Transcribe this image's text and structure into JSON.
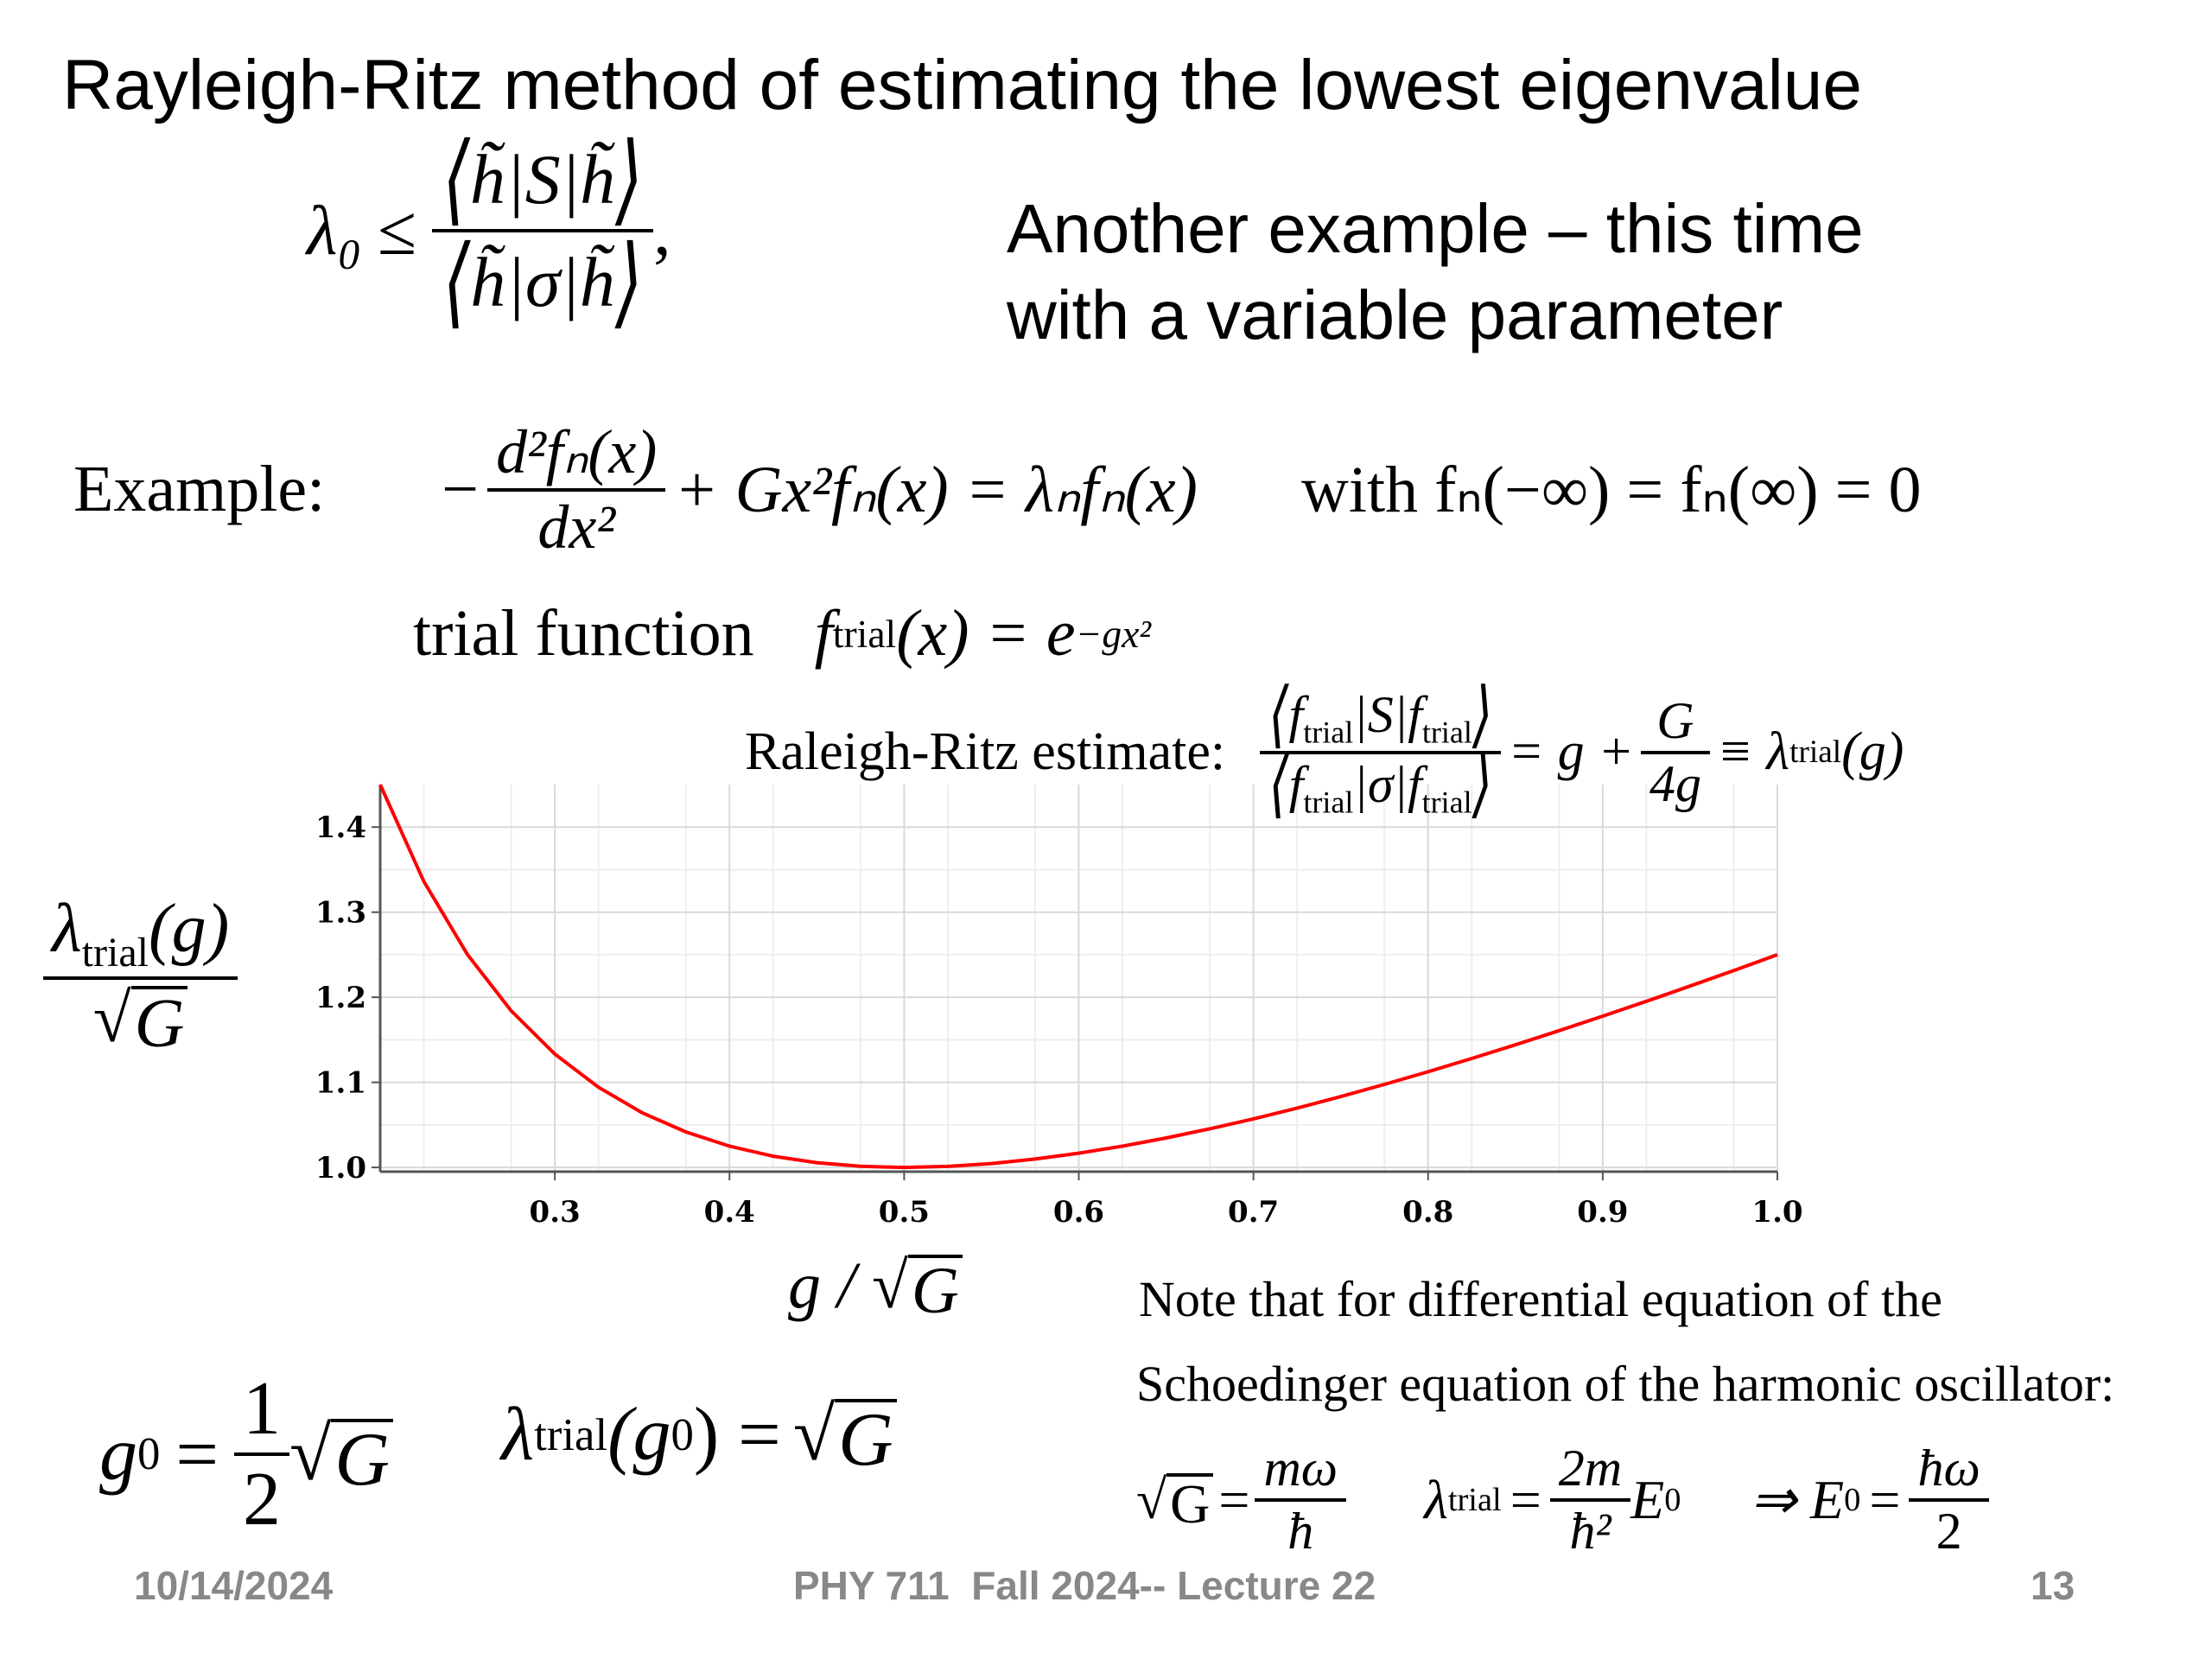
{
  "slide": {
    "title": "Rayleigh-Ritz method of estimating the lowest eigenvalue",
    "subtitle_line1": "Another example – this time",
    "subtitle_line2": "with a variable parameter"
  },
  "math": {
    "lambda0": "λ₀",
    "leq": "≤",
    "h_tilde": "h̃",
    "S": "S",
    "sigma": "σ",
    "example_label": "Example:",
    "ode_lhs_minus": "−",
    "ode_num": "d²fₙ(x)",
    "ode_den": "dx²",
    "ode_rest": "+ Gx²fₙ(x) = λₙfₙ(x)",
    "boundary": "with fₙ(−∞) = fₙ(∞) = 0",
    "trial_label": "trial function",
    "trial_formula_lhs": "f",
    "trial_sub": "trial",
    "trial_formula_rhs": "(x) = e",
    "trial_exp": "−gx²",
    "estimate_label": "Raleigh-Ritz estimate:",
    "estimate_rhs_g": "= g +",
    "estimate_G": "G",
    "estimate_4g": "4g",
    "estimate_equiv": "≡ λ",
    "estimate_g_arg": "(g)",
    "g0_lhs": "g",
    "g0_sub": "0",
    "g0_eq": "=",
    "g0_num": "1",
    "g0_den": "2",
    "g0_G": "G",
    "lambda_g0_lhs": "λ",
    "lambda_g0_arg": "(g",
    "lambda_g0_close": ") =",
    "lambda_g0_G": "G",
    "sqrtG_text": "G",
    "mw": "mω",
    "hbar": "ħ",
    "lambda_trial_eq": "=",
    "two_m": "2m",
    "hbar2": "ħ²",
    "E0": "E",
    "implies": "⇒ E",
    "hw": "ħω",
    "two": "2"
  },
  "note": {
    "line1": "Note that for differential equation of the",
    "line2": "Schoedinger equation of the harmonic oscillator:"
  },
  "axis_labels": {
    "y_lambda": "λ",
    "y_sub": "trial",
    "y_arg": "(g)",
    "y_G": "G",
    "x_g": "g /",
    "x_G": "G"
  },
  "footer": {
    "date": "10/14/2024",
    "course": "PHY 711  Fall 2024-- Lecture 22",
    "page": "13"
  },
  "colors": {
    "curve": "#ff0000",
    "grid": "#d9d9d9",
    "footer_text": "#888888"
  },
  "chart_data": {
    "type": "line",
    "title": "",
    "xlabel": "g / √G",
    "ylabel": "λtrial(g) / √G",
    "xlim": [
      0.2,
      1.0
    ],
    "ylim": [
      0.995,
      1.45
    ],
    "x_ticks": [
      "0.3",
      "0.4",
      "0.5",
      "0.6",
      "0.7",
      "0.8",
      "0.9",
      "1.0"
    ],
    "y_ticks": [
      "1.0",
      "1.1",
      "1.2",
      "1.3",
      "1.4"
    ],
    "grid": true,
    "series": [
      {
        "x": [
          0.2,
          0.225,
          0.25,
          0.275,
          0.3,
          0.325,
          0.35,
          0.375,
          0.4,
          0.425,
          0.45,
          0.475,
          0.5,
          0.525,
          0.55,
          0.575,
          0.6,
          0.625,
          0.65,
          0.675,
          0.7,
          0.725,
          0.75,
          0.775,
          0.8,
          0.825,
          0.85,
          0.875,
          0.9,
          0.925,
          0.95,
          0.975,
          1.0
        ],
        "y": [
          1.45,
          1.3361,
          1.25,
          1.1841,
          1.1333,
          1.0942,
          1.0643,
          1.0417,
          1.025,
          1.0132,
          1.0056,
          1.0013,
          1.0,
          1.0012,
          1.0045,
          1.0098,
          1.0167,
          1.025,
          1.0346,
          1.0454,
          1.0571,
          1.0698,
          1.0833,
          1.0976,
          1.1125,
          1.128,
          1.1441,
          1.1607,
          1.1778,
          1.1953,
          1.2132,
          1.2314,
          1.25
        ]
      }
    ]
  }
}
